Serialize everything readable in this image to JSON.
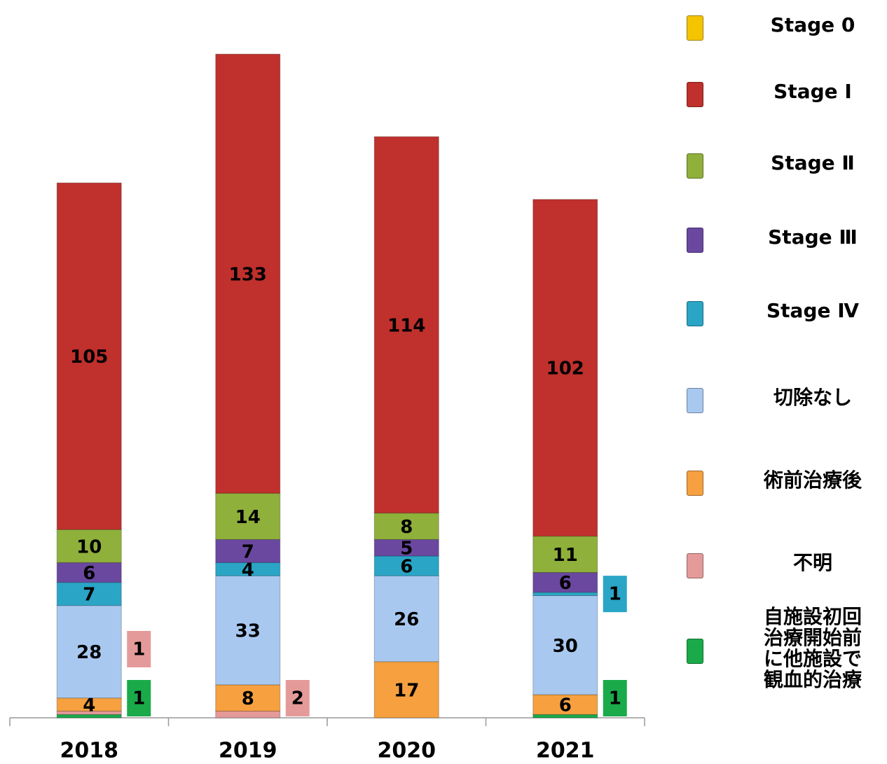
{
  "chart_data": {
    "type": "stacked_bar",
    "categories": [
      "2018",
      "2019",
      "2020",
      "2021"
    ],
    "series": [
      {
        "name": "Stage 0",
        "color": "#f5c400",
        "values": [
          0,
          0,
          0,
          0
        ]
      },
      {
        "name": "Stage Ⅰ",
        "color": "#c0302c",
        "values": [
          105,
          133,
          114,
          102
        ]
      },
      {
        "name": "Stage Ⅱ",
        "color": "#8fb03a",
        "values": [
          10,
          14,
          8,
          11
        ]
      },
      {
        "name": "Stage Ⅲ",
        "color": "#6a48a0",
        "values": [
          6,
          7,
          5,
          6
        ]
      },
      {
        "name": "Stage Ⅳ",
        "color": "#2aa5c6",
        "values": [
          7,
          4,
          6,
          1
        ]
      },
      {
        "name": "切除なし",
        "color": "#a8c8f0",
        "values": [
          28,
          33,
          26,
          30
        ]
      },
      {
        "name": "術前治療後",
        "color": "#f6a040",
        "values": [
          4,
          8,
          17,
          6
        ]
      },
      {
        "name": "不明",
        "color": "#e59a9a",
        "values": [
          1,
          2,
          0,
          0
        ]
      },
      {
        "name": "自施設初回\n治療開始前\nに他施設で\n観血的治療",
        "color": "#1aaa4a",
        "values": [
          1,
          0,
          0,
          1
        ]
      }
    ]
  }
}
